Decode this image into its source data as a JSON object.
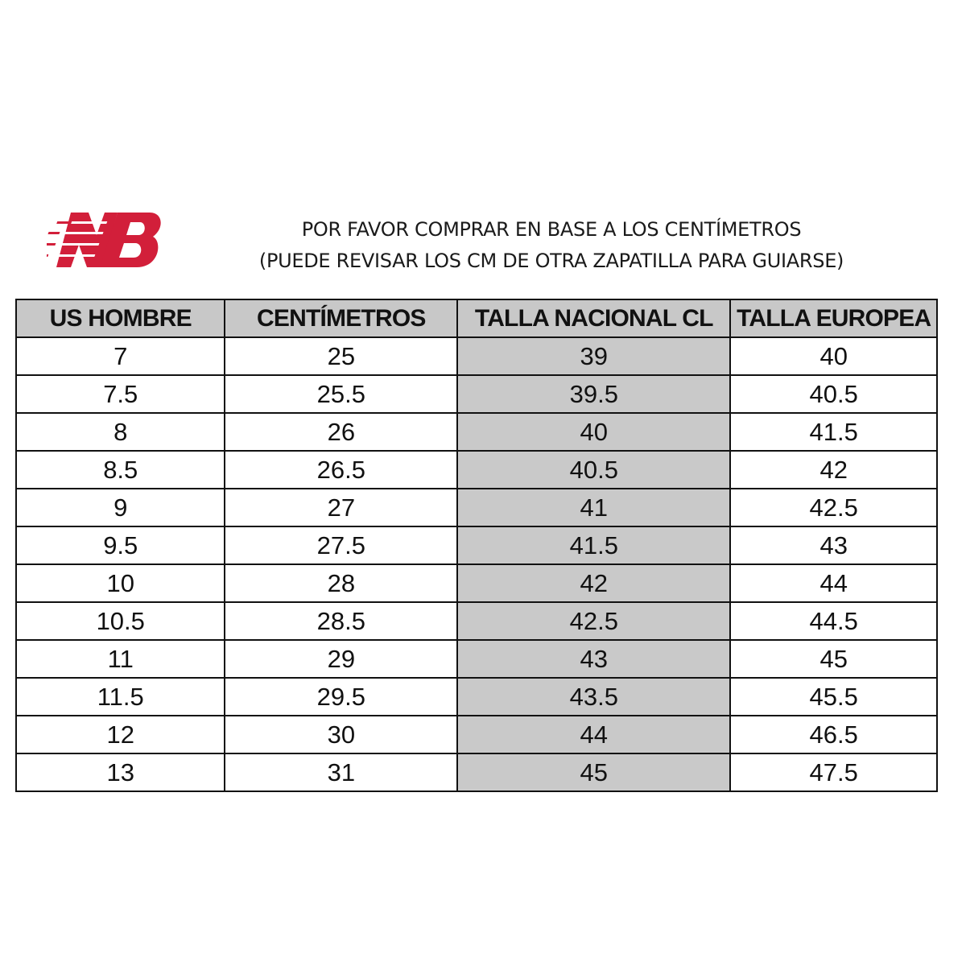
{
  "brand": {
    "logo_text": "NB",
    "color": "#d21f3a"
  },
  "notice": {
    "line1": "POR FAVOR COMPRAR EN BASE A LOS CENTÍMETROS",
    "line2": "(PUEDE REVISAR LOS CM DE OTRA ZAPATILLA PARA GUIARSE)"
  },
  "table": {
    "headers": [
      "US HOMBRE",
      "CENTÍMETROS",
      "TALLA NACIONAL CL",
      "TALLA EUROPEA"
    ],
    "highlight_color": "#c9c9c9",
    "rows": [
      [
        "7",
        "25",
        "39",
        "40"
      ],
      [
        "7.5",
        "25.5",
        "39.5",
        "40.5"
      ],
      [
        "8",
        "26",
        "40",
        "41.5"
      ],
      [
        "8.5",
        "26.5",
        "40.5",
        "42"
      ],
      [
        "9",
        "27",
        "41",
        "42.5"
      ],
      [
        "9.5",
        "27.5",
        "41.5",
        "43"
      ],
      [
        "10",
        "28",
        "42",
        "44"
      ],
      [
        "10.5",
        "28.5",
        "42.5",
        "44.5"
      ],
      [
        "11",
        "29",
        "43",
        "45"
      ],
      [
        "11.5",
        "29.5",
        "43.5",
        "45.5"
      ],
      [
        "12",
        "30",
        "44",
        "46.5"
      ],
      [
        "13",
        "31",
        "45",
        "47.5"
      ]
    ]
  }
}
